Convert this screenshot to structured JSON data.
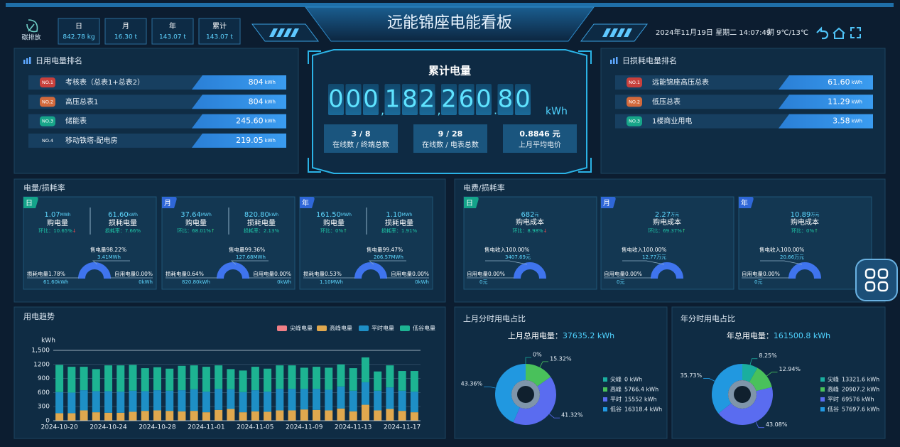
{
  "header": {
    "title": "远能锦座电能看板",
    "carbon_label": "碳排放",
    "stats": [
      {
        "label": "日",
        "value": "842.78 kg"
      },
      {
        "label": "月",
        "value": "16.30 t"
      },
      {
        "label": "年",
        "value": "143.07 t"
      },
      {
        "label": "累计",
        "value": "143.07 t"
      }
    ],
    "datetime": "2024年11月19日 星期二 14:07:49",
    "weather": "阴  9℃/13℃"
  },
  "daily_ranking": {
    "title": "日用电量排名",
    "rows": [
      {
        "rank": "NO.1",
        "name": "考核表（总表1+总表2）",
        "value": "804",
        "unit": "kWh"
      },
      {
        "rank": "NO.2",
        "name": "高压总表1",
        "value": "804",
        "unit": "kWh"
      },
      {
        "rank": "NO.3",
        "name": "储能表",
        "value": "245.60",
        "unit": "kWh"
      },
      {
        "rank": "NO.4",
        "name": "移动铁塔-配电房",
        "value": "219.05",
        "unit": "kWh"
      }
    ]
  },
  "summary": {
    "title": "累计电量",
    "digits": [
      "0",
      "0",
      "0",
      ",",
      "1",
      "8",
      "2",
      ",",
      "2",
      "6",
      "0",
      ".",
      "8",
      "0"
    ],
    "unit": "kWh",
    "stats": [
      {
        "value": "3 / 8",
        "label": "在线数 / 终端总数"
      },
      {
        "value": "9 / 28",
        "label": "在线数 / 电表总数"
      },
      {
        "value": "0.8846 元",
        "label": "上月平均电价"
      }
    ]
  },
  "loss_ranking": {
    "title": "日损耗电量排名",
    "rows": [
      {
        "rank": "NO.1",
        "name": "远能锦座高压总表",
        "value": "61.60",
        "unit": "kWh"
      },
      {
        "rank": "NO.2",
        "name": "低压总表",
        "value": "11.29",
        "unit": "kWh"
      },
      {
        "rank": "NO.3",
        "name": "1楼商业用电",
        "value": "3.58",
        "unit": "kWh"
      }
    ]
  },
  "energy_loss": {
    "title": "电量/损耗率",
    "cards": [
      {
        "period": "日",
        "buy": {
          "value": "1.07",
          "unit": "MWh",
          "label": "购电量",
          "ratio": "环比：10.65%",
          "arrow": "↓"
        },
        "loss": {
          "value": "61.60",
          "unit": "kWh",
          "label": "损耗电量",
          "ratio": "损耗率：7.66%"
        },
        "gauge": {
          "sold_label": "售电量98.22%",
          "sold_value": "3.41MWh",
          "loss_label": "损耗电量1.78%",
          "loss_value": "61.60kWh",
          "self_label": "自用电量0.00%",
          "self_value": "0kWh"
        }
      },
      {
        "period": "月",
        "buy": {
          "value": "37.64",
          "unit": "MWh",
          "label": "购电量",
          "ratio": "环比：68.01%",
          "arrow": "↑"
        },
        "loss": {
          "value": "820.80",
          "unit": "kWh",
          "label": "损耗电量",
          "ratio": "损耗率：2.13%"
        },
        "gauge": {
          "sold_label": "售电量99.36%",
          "sold_value": "127.68MWh",
          "loss_label": "损耗电量0.64%",
          "loss_value": "820.80kWh",
          "self_label": "自用电量0.00%",
          "self_value": "0kWh"
        }
      },
      {
        "period": "年",
        "buy": {
          "value": "161.50",
          "unit": "MWh",
          "label": "购电量",
          "ratio": "环比：0%",
          "arrow": "↑"
        },
        "loss": {
          "value": "1.10",
          "unit": "MWh",
          "label": "损耗电量",
          "ratio": "损耗率：1.91%"
        },
        "gauge": {
          "sold_label": "售电量99.47%",
          "sold_value": "206.57MWh",
          "loss_label": "损耗电量0.53%",
          "loss_value": "1.10MWh",
          "self_label": "自用电量0.00%",
          "self_value": "0kWh"
        }
      }
    ]
  },
  "cost_loss": {
    "title": "电费/损耗率",
    "cards": [
      {
        "period": "日",
        "value": "682",
        "unit": "元",
        "label": "购电成本",
        "ratio": "环比：8.98%",
        "arrow": "↓",
        "gauge": {
          "sold_label": "售电收入100.00%",
          "sold_value": "3407.69元",
          "self_label": "自用电量0.00%",
          "self_value": "0元"
        }
      },
      {
        "period": "月",
        "value": "2.27",
        "unit": "万元",
        "label": "购电成本",
        "ratio": "环比：69.37%",
        "arrow": "↑",
        "gauge": {
          "sold_label": "售电收入100.00%",
          "sold_value": "12.77万元",
          "self_label": "自用电量0.00%",
          "self_value": "0元"
        }
      },
      {
        "period": "年",
        "value": "10.89",
        "unit": "万元",
        "label": "购电成本",
        "ratio": "环比：0%",
        "arrow": "↑",
        "gauge": {
          "sold_label": "售电收入100.00%",
          "sold_value": "20.66万元",
          "self_label": "自用电量0.00%",
          "self_value": "0元"
        }
      }
    ]
  },
  "chart_data": [
    {
      "type": "bar",
      "stacked": true,
      "title": "用电趋势",
      "y_label": "kWh",
      "grid": true,
      "categories": [
        "2024-10-20",
        null,
        null,
        null,
        "2024-10-24",
        null,
        null,
        null,
        "2024-10-28",
        null,
        null,
        null,
        "2024-11-01",
        null,
        null,
        null,
        "2024-11-05",
        null,
        null,
        null,
        "2024-11-09",
        null,
        null,
        null,
        "2024-11-13",
        null,
        null,
        null,
        "2024-11-17",
        null
      ],
      "series": [
        {
          "name": "尖峰电量",
          "color": "#f07f86",
          "values": [
            0,
            0,
            0,
            0,
            0,
            0,
            0,
            0,
            0,
            0,
            0,
            0,
            0,
            0,
            0,
            0,
            0,
            0,
            0,
            0,
            0,
            0,
            0,
            0,
            0,
            0,
            0,
            0,
            0,
            0
          ]
        },
        {
          "name": "高峰电量",
          "color": "#e0a84e",
          "values": [
            160,
            160,
            220,
            180,
            170,
            170,
            190,
            210,
            220,
            210,
            200,
            210,
            180,
            230,
            250,
            180,
            200,
            190,
            220,
            220,
            240,
            230,
            220,
            260,
            200,
            340,
            220,
            250,
            210,
            180
          ]
        },
        {
          "name": "平时电量",
          "color": "#1e8fc6",
          "values": [
            450,
            440,
            430,
            450,
            460,
            450,
            450,
            420,
            430,
            430,
            450,
            460,
            440,
            450,
            420,
            430,
            450,
            430,
            460,
            460,
            440,
            450,
            440,
            470,
            440,
            480,
            420,
            460,
            430,
            440
          ]
        },
        {
          "name": "低谷电量",
          "color": "#1db392",
          "values": [
            580,
            550,
            500,
            470,
            550,
            560,
            550,
            490,
            490,
            470,
            520,
            510,
            530,
            500,
            430,
            460,
            500,
            490,
            500,
            500,
            450,
            470,
            470,
            470,
            480,
            530,
            410,
            470,
            420,
            440
          ]
        }
      ],
      "ylim": [
        0,
        1500
      ],
      "yticks": [
        0,
        300,
        600,
        900,
        1200,
        {
          "value": 1500,
          "label": "1,500"
        }
      ]
    },
    {
      "type": "pie",
      "title": "上月分时用电占比",
      "subtitle_label": "上月总用电量：",
      "subtitle_value": "37635.2 kWh",
      "categories": [
        "尖峰",
        "高峰",
        "平时",
        "低谷"
      ],
      "colors": [
        "#1aae9f",
        "#49c15b",
        "#5a6cf0",
        "#2198e0"
      ],
      "values": [
        0,
        15.32,
        41.32,
        43.36
      ],
      "value_labels": [
        "0%",
        "15.32%",
        "41.32%",
        "43.36%"
      ],
      "legend_values": [
        "0 kWh",
        "5766.4 kWh",
        "15552 kWh",
        "16318.4 kWh"
      ]
    },
    {
      "type": "pie",
      "title": "年分时用电占比",
      "subtitle_label": "年总用电量：",
      "subtitle_value": "161500.8 kWh",
      "categories": [
        "尖峰",
        "高峰",
        "平时",
        "低谷"
      ],
      "colors": [
        "#1aae9f",
        "#49c15b",
        "#5a6cf0",
        "#2198e0"
      ],
      "values": [
        8.25,
        12.94,
        43.08,
        35.73
      ],
      "value_labels": [
        "8.25%",
        "12.94%",
        "43.08%",
        "35.73%"
      ],
      "legend_values": [
        "13321.6 kWh",
        "20907.2 kWh",
        "69576 kWh",
        "57697.6 kWh"
      ]
    }
  ]
}
